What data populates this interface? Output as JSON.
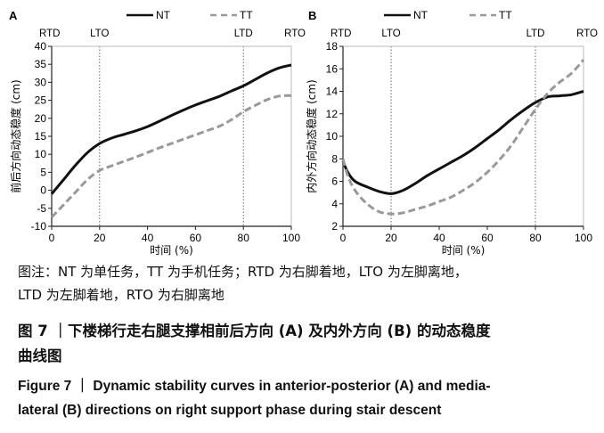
{
  "chart_data": [
    {
      "type": "line",
      "panel_label": "A",
      "ylabel": "前后方向动态稳度 (cm)",
      "xlabel": "时间 (%)",
      "xlim": [
        0,
        100
      ],
      "ylim": [
        -10,
        40
      ],
      "xticks": [
        0,
        20,
        40,
        60,
        80,
        100
      ],
      "yticks": [
        -10,
        -5,
        0,
        5,
        10,
        15,
        20,
        25,
        30,
        35,
        40
      ],
      "event_labels": [
        "RTD",
        "LTO",
        "LTD",
        "RTO"
      ],
      "event_x": [
        0,
        20,
        80,
        100
      ],
      "legend_position": "top",
      "series": [
        {
          "name": "NT",
          "style": "solid",
          "color": "#111111",
          "x": [
            0,
            5,
            10,
            15,
            20,
            25,
            30,
            35,
            40,
            45,
            50,
            55,
            60,
            65,
            70,
            75,
            80,
            85,
            90,
            95,
            100
          ],
          "y": [
            -1.0,
            3.0,
            7.0,
            10.5,
            13.0,
            14.5,
            15.5,
            16.5,
            17.7,
            19.2,
            20.8,
            22.3,
            23.7,
            24.9,
            26.1,
            27.6,
            29.0,
            30.8,
            32.6,
            34.0,
            34.8
          ]
        },
        {
          "name": "TT",
          "style": "dashed",
          "color": "#999999",
          "x": [
            0,
            5,
            10,
            15,
            20,
            25,
            30,
            35,
            40,
            45,
            50,
            55,
            60,
            65,
            70,
            75,
            80,
            85,
            90,
            95,
            100
          ],
          "y": [
            -7.5,
            -4.0,
            -0.5,
            3.0,
            5.5,
            6.8,
            8.0,
            9.2,
            10.5,
            11.8,
            13.0,
            14.2,
            15.4,
            16.6,
            17.8,
            19.6,
            21.8,
            23.6,
            25.2,
            26.2,
            26.3
          ]
        }
      ]
    },
    {
      "type": "line",
      "panel_label": "B",
      "ylabel": "内外方向动态稳度 (cm)",
      "xlabel": "时间 (%)",
      "xlim": [
        0,
        100
      ],
      "ylim": [
        2,
        18
      ],
      "xticks": [
        0,
        20,
        40,
        60,
        80,
        100
      ],
      "yticks": [
        2,
        4,
        6,
        8,
        10,
        12,
        14,
        16,
        18
      ],
      "event_labels": [
        "RTD",
        "LTO",
        "LTD",
        "RTO"
      ],
      "event_x": [
        0,
        20,
        80,
        100
      ],
      "legend_position": "top",
      "series": [
        {
          "name": "NT",
          "style": "solid",
          "color": "#111111",
          "x": [
            0,
            2,
            5,
            10,
            15,
            20,
            25,
            30,
            35,
            40,
            45,
            50,
            55,
            60,
            65,
            70,
            75,
            80,
            85,
            90,
            95,
            100
          ],
          "y": [
            7.8,
            6.8,
            6.0,
            5.5,
            5.1,
            4.9,
            5.2,
            5.8,
            6.5,
            7.1,
            7.7,
            8.3,
            9.0,
            9.8,
            10.6,
            11.5,
            12.3,
            13.0,
            13.5,
            13.6,
            13.7,
            14.0
          ]
        },
        {
          "name": "TT",
          "style": "dashed",
          "color": "#999999",
          "x": [
            0,
            2,
            5,
            10,
            15,
            20,
            25,
            30,
            35,
            40,
            45,
            50,
            55,
            60,
            65,
            70,
            75,
            80,
            85,
            90,
            95,
            100
          ],
          "y": [
            8.0,
            6.5,
            5.2,
            4.0,
            3.3,
            3.1,
            3.2,
            3.5,
            3.8,
            4.2,
            4.6,
            5.2,
            5.9,
            6.8,
            7.9,
            9.2,
            10.8,
            12.4,
            13.8,
            14.8,
            15.6,
            16.8
          ]
        }
      ]
    }
  ],
  "caption": {
    "note_line1": "图注：NT 为单任务，TT 为手机任务；RTD 为右脚着地，LTO 为左脚离地，",
    "note_line2": "LTD 为左脚着地，RTO 为右脚离地",
    "cn_title_line1": "图 7 ｜下楼梯行走右腿支撑相前后方向 (A) 及内外方向 (B) 的动态稳度",
    "cn_title_line2": "曲线图",
    "en_title_line1": "Figure 7 ｜ Dynamic stability curves in anterior-posterior (A) and media-",
    "en_title_line2": "lateral (B) directions on right support phase during stair descent"
  }
}
